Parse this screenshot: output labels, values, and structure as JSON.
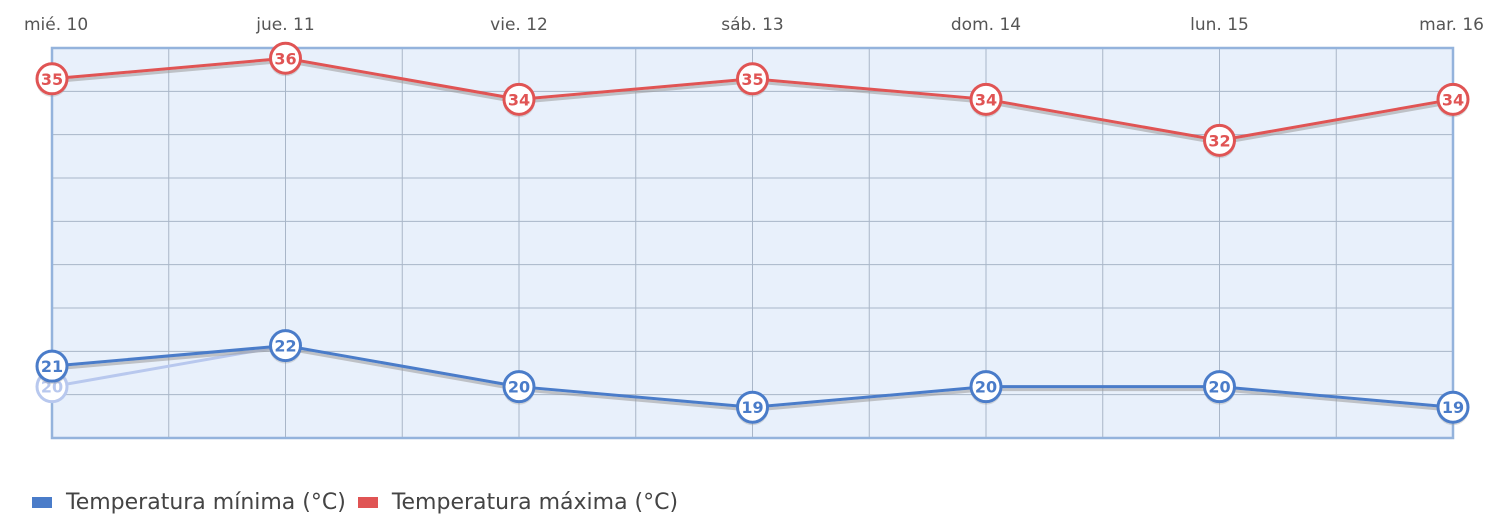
{
  "chart_data": {
    "type": "line",
    "categories": [
      "mié. 10",
      "jue. 11",
      "vie. 12",
      "sáb. 13",
      "dom. 14",
      "lun. 15",
      "mar. 16"
    ],
    "ylim": [
      17.5,
      36.5
    ],
    "grid": true,
    "legend_position": "bottom-left",
    "series": [
      {
        "name": "Temperatura mínima (°C)",
        "color": "#4a7cc9",
        "values": [
          21,
          22,
          20,
          19,
          20,
          20,
          19
        ]
      },
      {
        "name": "Temperatura máxima (°C)",
        "color": "#e05454",
        "values": [
          35,
          36,
          34,
          35,
          34,
          32,
          34
        ]
      }
    ],
    "ghost_point": {
      "series": 0,
      "index": 0,
      "value": 20,
      "color": "#b8c8ee"
    }
  },
  "colors": {
    "plot_background": "#e8f0fb",
    "plot_border": "#94b3dc",
    "grid": "#a9b6c8"
  }
}
